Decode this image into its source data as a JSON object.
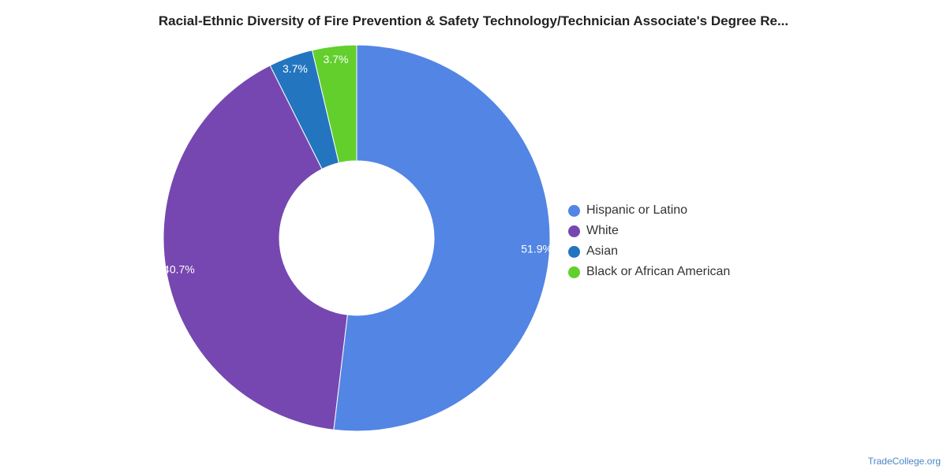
{
  "chart_data": {
    "type": "pie",
    "title": "Racial-Ethnic Diversity of Fire Prevention & Safety Technology/Technician Associate's Degree Re...",
    "donut": true,
    "legend_position": "right",
    "slices": [
      {
        "name": "Hispanic or Latino",
        "value": 51.9,
        "label": "51.9%",
        "color": "#5385e4"
      },
      {
        "name": "White",
        "value": 40.7,
        "label": "40.7%",
        "color": "#7647b0"
      },
      {
        "name": "Asian",
        "value": 3.7,
        "label": "3.7%",
        "color": "#2375bf"
      },
      {
        "name": "Black or African American",
        "value": 3.7,
        "label": "3.7%",
        "color": "#62cf2d"
      }
    ]
  },
  "watermark": "TradeCollege.org"
}
